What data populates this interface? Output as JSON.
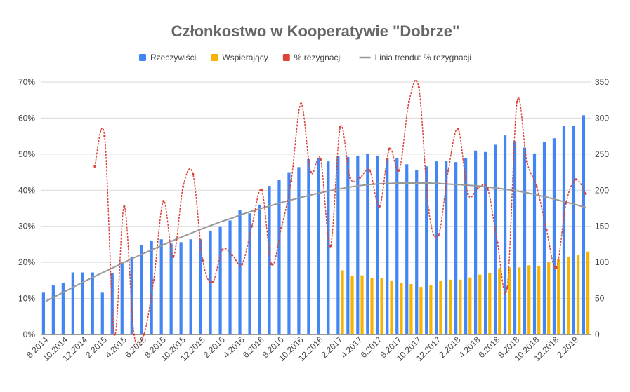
{
  "chart_data": {
    "type": "bar",
    "title": "Członkostwo w Kooperatywie \"Dobrze\"",
    "colors": {
      "real": "#4285f4",
      "support": "#f4b400",
      "resign": "#db4437",
      "trend": "#999999",
      "grid": "#d9d9d9",
      "text": "#444444",
      "title": "#666666"
    },
    "legend": {
      "position": "top",
      "items": [
        {
          "label": "Rzeczywiści",
          "color": "#4285f4",
          "marker": "square"
        },
        {
          "label": "Wspierający",
          "color": "#f4b400",
          "marker": "square"
        },
        {
          "label": "% rezygnacji",
          "color": "#db4437",
          "marker": "square"
        },
        {
          "label": "Linia trendu: % rezygnacji",
          "color": "#999999",
          "marker": "line"
        }
      ]
    },
    "y_left": {
      "ticks": [
        "0%",
        "10%",
        "20%",
        "30%",
        "40%",
        "50%",
        "60%",
        "70%"
      ],
      "range": [
        0,
        70
      ]
    },
    "y_right": {
      "ticks": [
        "0",
        "50",
        "100",
        "150",
        "200",
        "250",
        "300",
        "350"
      ],
      "range": [
        0,
        350
      ]
    },
    "grid": true,
    "x_tick_labels": [
      "8.2014",
      "10.2014",
      "12.2014",
      "2.2015",
      "4.2015",
      "6.2015",
      "8.2015",
      "10.2015",
      "12.2015",
      "2.2016",
      "4.2016",
      "6.2016",
      "8.2016",
      "10.2016",
      "12.2016",
      "2.2017",
      "4.2017",
      "6.2017",
      "8.2017",
      "10.2017",
      "12.2017",
      "2.2018",
      "4.2018",
      "6.2018",
      "8.2018",
      "10.2018",
      "12.2018",
      "2.2019"
    ],
    "categories": [
      "8.2014",
      "9.2014",
      "10.2014",
      "11.2014",
      "12.2014",
      "1.2015",
      "2.2015",
      "3.2015",
      "4.2015",
      "5.2015",
      "6.2015",
      "7.2015",
      "8.2015",
      "9.2015",
      "10.2015",
      "11.2015",
      "12.2015",
      "1.2016",
      "2.2016",
      "3.2016",
      "4.2016",
      "5.2016",
      "6.2016",
      "7.2016",
      "8.2016",
      "9.2016",
      "10.2016",
      "11.2016",
      "12.2016",
      "1.2017",
      "2.2017",
      "3.2017",
      "4.2017",
      "5.2017",
      "6.2017",
      "7.2017",
      "8.2017",
      "9.2017",
      "10.2017",
      "11.2017",
      "12.2017",
      "1.2018",
      "2.2018",
      "3.2018",
      "4.2018",
      "5.2018",
      "6.2018",
      "7.2018",
      "8.2018",
      "9.2018",
      "10.2018",
      "11.2018",
      "12.2018",
      "1.2019",
      "2.2019",
      "3.2019"
    ],
    "series": [
      {
        "name": "Rzeczywiści",
        "type": "bar",
        "axis": "right",
        "values": [
          58,
          68,
          72,
          86,
          86,
          86,
          58,
          85,
          100,
          108,
          124,
          130,
          132,
          126,
          128,
          132,
          132,
          144,
          150,
          158,
          172,
          168,
          180,
          206,
          214,
          225,
          232,
          243,
          244,
          240,
          248,
          246,
          248,
          250,
          248,
          244,
          244,
          236,
          228,
          233,
          240,
          241,
          239,
          245,
          255,
          253,
          263,
          276,
          268,
          259,
          251,
          267,
          272,
          289,
          289,
          304
        ]
      },
      {
        "name": "Wspierający",
        "type": "bar",
        "axis": "right",
        "values": [
          null,
          null,
          null,
          null,
          null,
          null,
          null,
          null,
          null,
          null,
          null,
          null,
          null,
          null,
          null,
          null,
          null,
          null,
          null,
          null,
          null,
          null,
          null,
          null,
          null,
          null,
          null,
          null,
          null,
          null,
          89,
          81,
          82,
          78,
          78,
          75,
          71,
          70,
          66,
          68,
          74,
          76,
          76,
          79,
          83,
          85,
          92,
          93,
          93,
          96,
          95,
          100,
          104,
          108,
          110,
          115
        ]
      },
      {
        "name": "% rezygnacji",
        "type": "line",
        "axis": "left",
        "style": "dotted",
        "values": [
          null,
          null,
          null,
          null,
          null,
          46.6,
          55.0,
          0,
          35.5,
          0,
          0,
          15.0,
          37.0,
          21.5,
          41.0,
          44.5,
          20.5,
          14.5,
          23.5,
          22.0,
          19.5,
          30.0,
          40.0,
          19.5,
          29.5,
          42.5,
          64.0,
          45.0,
          48.5,
          24.5,
          57.5,
          43.5,
          43.5,
          45.5,
          35.5,
          51.5,
          45.5,
          64.5,
          68.5,
          34.5,
          27.5,
          45.5,
          57.0,
          39.0,
          40.5,
          40.5,
          25.5,
          13.0,
          64.5,
          48.0,
          41.0,
          29.0,
          18.5,
          36.5,
          43.0,
          39.0
        ]
      },
      {
        "name": "Linia trendu: % rezygnacji",
        "type": "trendline",
        "axis": "left",
        "values": [
          9.2,
          10.6,
          12.0,
          13.4,
          14.8,
          16.1,
          17.4,
          18.7,
          20.0,
          21.3,
          22.5,
          23.7,
          24.9,
          26.1,
          27.2,
          28.3,
          29.4,
          30.4,
          31.4,
          32.3,
          33.3,
          34.2,
          35.0,
          35.8,
          36.6,
          37.3,
          38.0,
          38.7,
          39.3,
          39.9,
          40.4,
          40.9,
          41.3,
          41.6,
          41.8,
          41.9,
          42.0,
          42.0,
          42.0,
          42.0,
          41.9,
          41.7,
          41.6,
          41.4,
          41.2,
          40.9,
          40.6,
          40.2,
          39.8,
          39.3,
          38.7,
          38.1,
          37.4,
          36.7,
          36.0,
          35.2
        ]
      }
    ]
  }
}
